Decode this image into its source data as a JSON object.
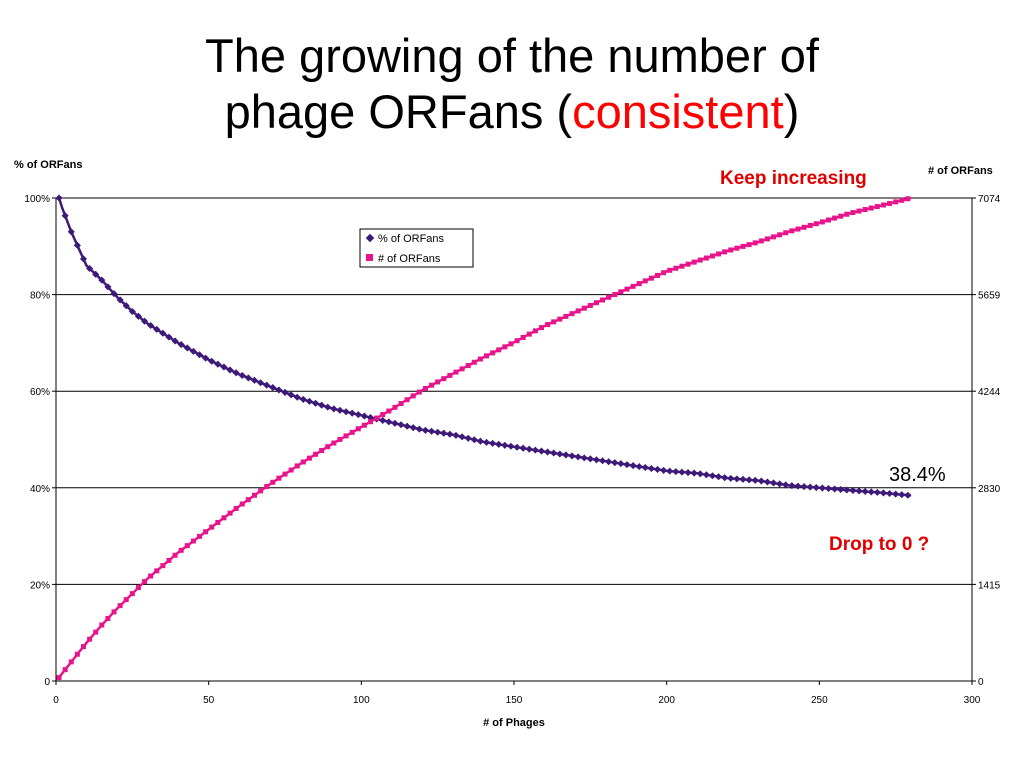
{
  "slide": {
    "title_line1": "The growing of the number of",
    "title_line2_prefix": "phage ORFans (",
    "title_line2_highlight": "consistent",
    "title_line2_suffix": ")"
  },
  "colors": {
    "percent_series": "#3d1a78",
    "count_series": "#e8148c",
    "annotation_red": "#e00000"
  },
  "chart_data": {
    "type": "line",
    "xlabel": "# of Phages",
    "ylabel_left": "% of ORFans",
    "ylabel_right": "# of ORFans",
    "xlim": [
      0,
      300
    ],
    "ylim_left": [
      0,
      100
    ],
    "ylim_right": [
      0,
      7074
    ],
    "x_ticks": [
      "0",
      "50",
      "100",
      "150",
      "200",
      "250",
      "300"
    ],
    "y_ticks_left": [
      "0",
      "20%",
      "40%",
      "60%",
      "80%",
      "100%"
    ],
    "y_ticks_right": [
      "0",
      "1415",
      "2830",
      "4244",
      "5659",
      "7074"
    ],
    "grid": "horizontal",
    "legend": [
      "% of ORFans",
      "# of ORFans"
    ],
    "legend_position": "top-center",
    "series": [
      {
        "name": "% of ORFans",
        "axis": "left",
        "x": [
          1,
          2,
          5,
          10,
          15,
          20,
          25,
          30,
          40,
          50,
          60,
          70,
          80,
          90,
          100,
          110,
          120,
          130,
          140,
          150,
          160,
          170,
          180,
          190,
          200,
          210,
          220,
          230,
          240,
          250,
          260,
          270,
          280
        ],
        "values": [
          100,
          98,
          93,
          86,
          83,
          79.5,
          76.5,
          74,
          70,
          66.5,
          63.5,
          61,
          58.5,
          56.5,
          55,
          53.5,
          52,
          51,
          49.5,
          48.5,
          47.5,
          46.5,
          45.5,
          44.5,
          43.5,
          43,
          42,
          41.5,
          40.5,
          40,
          39.5,
          39,
          38.4
        ]
      },
      {
        "name": "# of ORFans",
        "axis": "right",
        "x": [
          1,
          2,
          5,
          10,
          15,
          20,
          25,
          30,
          40,
          50,
          60,
          70,
          80,
          90,
          100,
          110,
          120,
          130,
          140,
          150,
          160,
          170,
          180,
          190,
          200,
          210,
          220,
          230,
          240,
          250,
          260,
          270,
          280
        ],
        "values": [
          50,
          110,
          280,
          560,
          820,
          1060,
          1280,
          1500,
          1880,
          2220,
          2560,
          2880,
          3180,
          3460,
          3720,
          3980,
          4260,
          4500,
          4740,
          4960,
          5200,
          5400,
          5600,
          5800,
          6000,
          6150,
          6300,
          6430,
          6580,
          6710,
          6850,
          6960,
          7074
        ]
      }
    ],
    "annotations": [
      {
        "text": "Keep increasing",
        "color": "red"
      },
      {
        "text": "38.4%",
        "color": "black"
      },
      {
        "text": "Drop to 0 ?",
        "color": "red"
      }
    ]
  }
}
